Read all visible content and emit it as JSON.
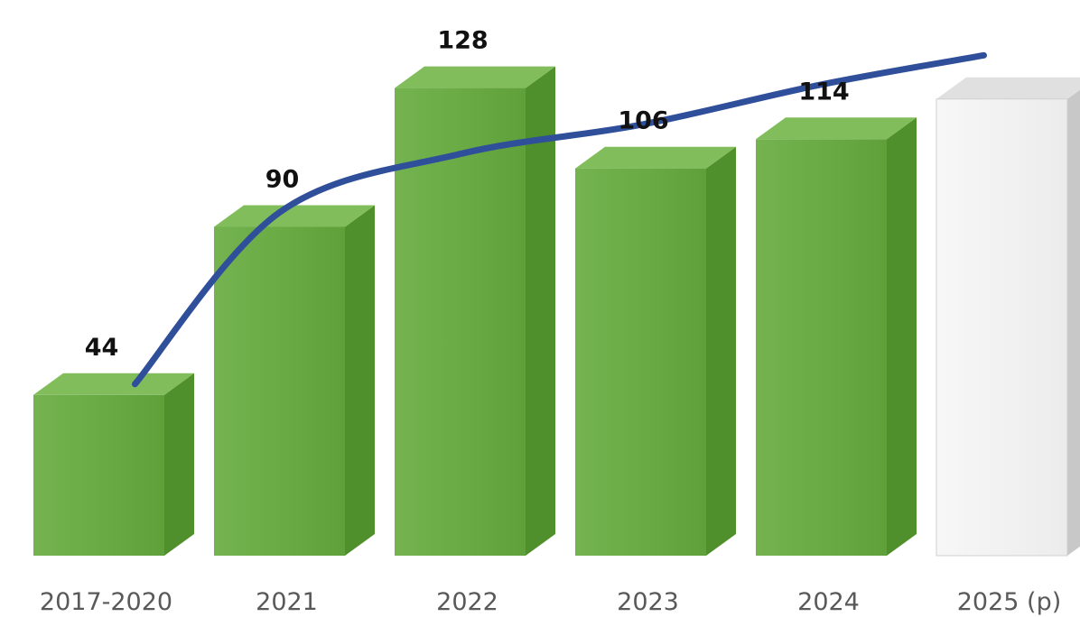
{
  "chart_data": {
    "type": "bar",
    "categories": [
      "2017-2020",
      "2021",
      "2022",
      "2023",
      "2024",
      "2025 (p)"
    ],
    "values": [
      44,
      90,
      128,
      106,
      114,
      null
    ],
    "data_labels": [
      "44",
      "90",
      "128",
      "106",
      "114",
      ""
    ],
    "trend_line": [
      44,
      90,
      106,
      114,
      125,
      133
    ],
    "projected_category": "2025 (p)",
    "title": "",
    "xlabel": "",
    "ylabel": "",
    "grid": false,
    "legend": "none",
    "colors": {
      "bar_front": "#6aab45",
      "bar_side": "#4f8f2c",
      "bar_top": "#82bd5c",
      "projected_front": "#f2f2f2",
      "projected_side": "#c8c8c8",
      "projected_top": "#e0e0e0",
      "trend_line": "#2f4f9a"
    }
  }
}
